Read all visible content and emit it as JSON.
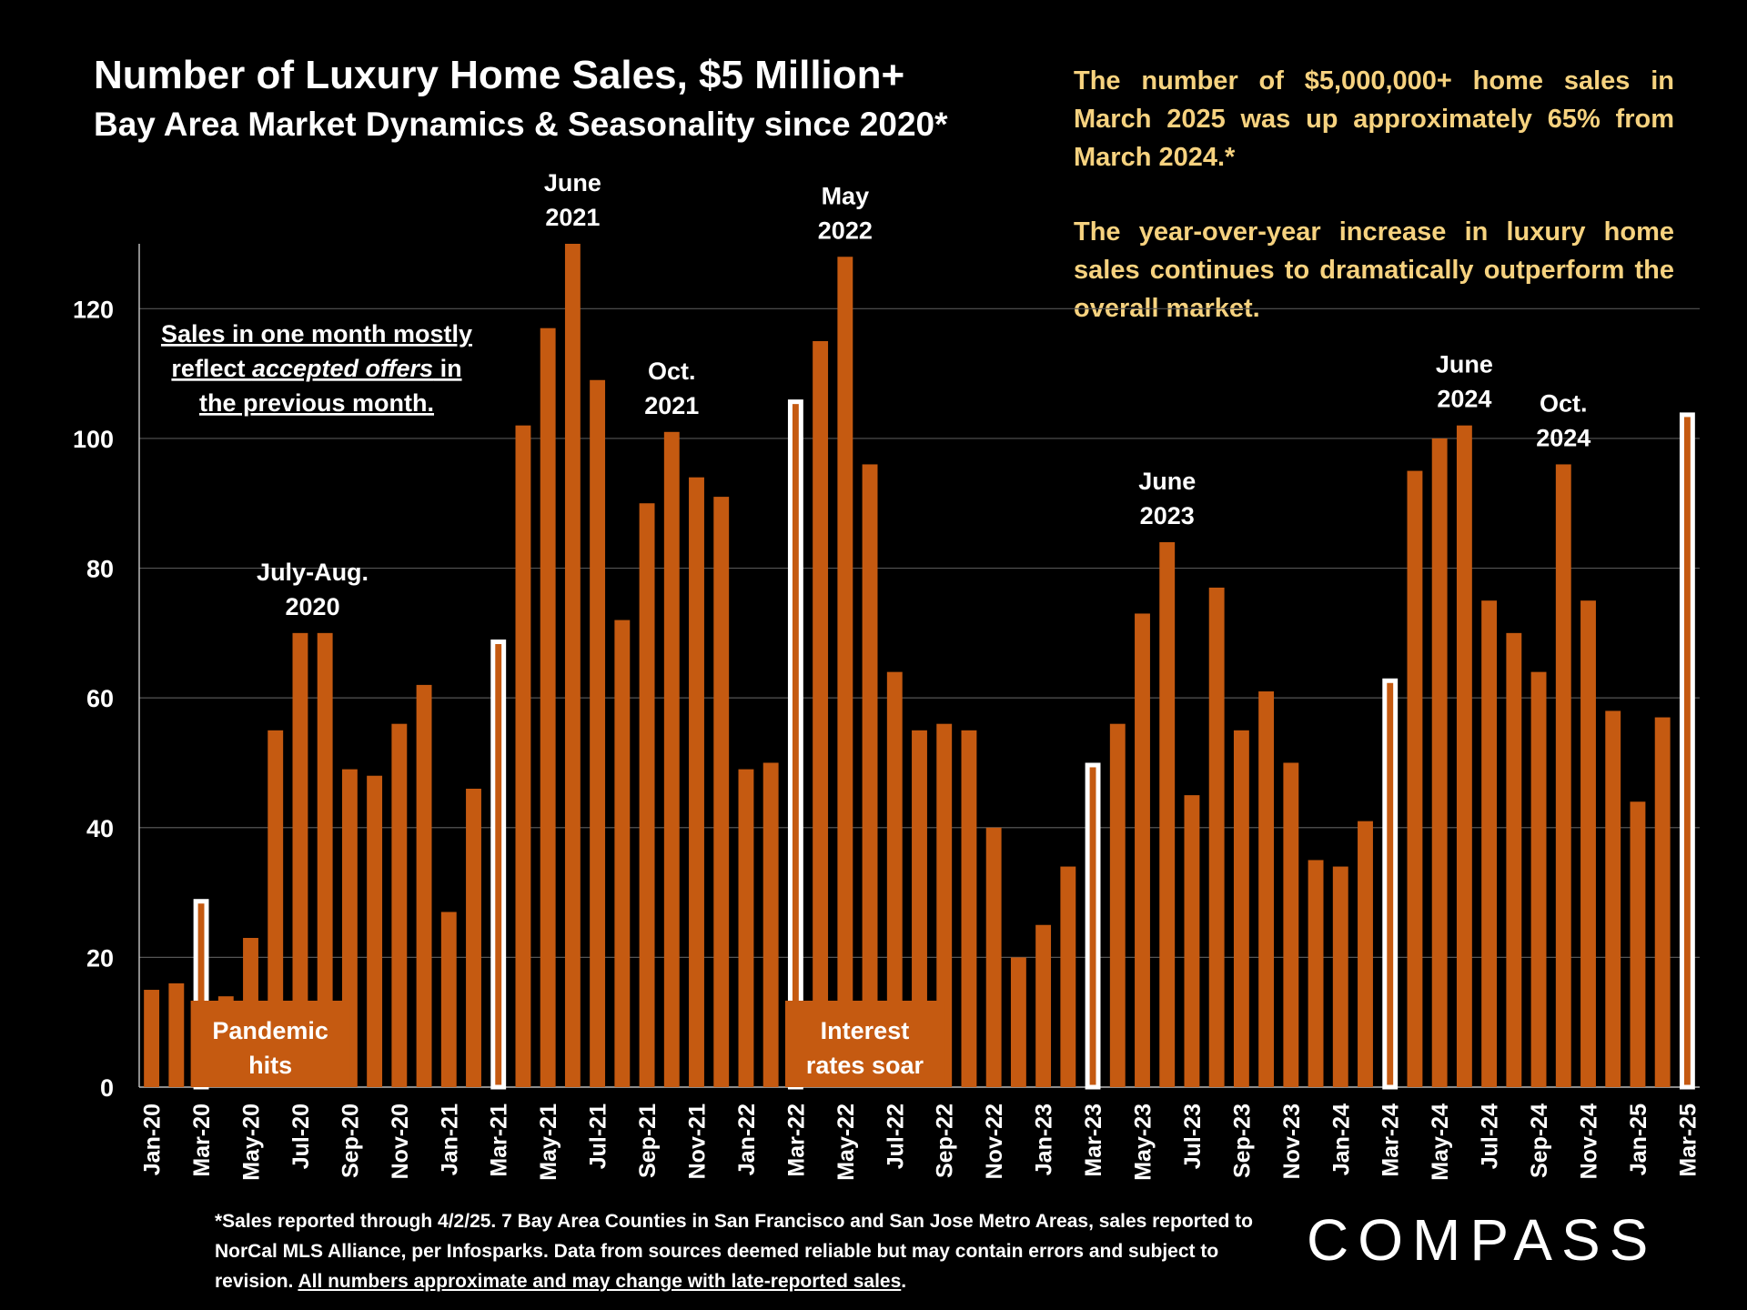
{
  "header": {
    "title": "Number of Luxury Home Sales, $5 Million+",
    "subtitle": "Bay Area Market Dynamics & Seasonality since 2020*"
  },
  "commentary": {
    "p1": "The number of $5,000,000+ home sales in March 2025 was up approximately 65% from March 2024.*",
    "p2": "The year-over-year increase in luxury home sales continues to dramatically outperform the overall market."
  },
  "footnote": {
    "main": "*Sales reported through 4/2/25. 7 Bay Area Counties in San Francisco and San Jose Metro Areas, sales reported to NorCal MLS Alliance, per Infosparks.  Data from sources deemed reliable but may contain errors and subject to revision. ",
    "underlined": "All numbers approximate and may change with late-reported sales",
    "end": "."
  },
  "logo": {
    "text": "COMPASS"
  },
  "colors": {
    "bar": "#c55a11",
    "highlight_bar": "#ffffff",
    "background": "#000000",
    "commentary": "#f6d27f"
  },
  "chart_data": {
    "type": "bar",
    "title": "Number of Luxury Home Sales, $5 Million+",
    "subtitle": "Bay Area Market Dynamics & Seasonality since 2020*",
    "ylim": [
      0,
      130
    ],
    "yticks": [
      0,
      20,
      40,
      60,
      80,
      100,
      120
    ],
    "grid": true,
    "categories": [
      "Jan-20",
      "Feb-20",
      "Mar-20",
      "Apr-20",
      "May-20",
      "Jun-20",
      "Jul-20",
      "Aug-20",
      "Sep-20",
      "Oct-20",
      "Nov-20",
      "Dec-20",
      "Jan-21",
      "Feb-21",
      "Mar-21",
      "Apr-21",
      "May-21",
      "Jun-21",
      "Jul-21",
      "Aug-21",
      "Sep-21",
      "Oct-21",
      "Nov-21",
      "Dec-21",
      "Jan-22",
      "Feb-22",
      "Mar-22",
      "Apr-22",
      "May-22",
      "Jun-22",
      "Jul-22",
      "Aug-22",
      "Sep-22",
      "Oct-22",
      "Nov-22",
      "Dec-22",
      "Jan-23",
      "Feb-23",
      "Mar-23",
      "Apr-23",
      "May-23",
      "Jun-23",
      "Jul-23",
      "Aug-23",
      "Sep-23",
      "Oct-23",
      "Nov-23",
      "Dec-23",
      "Jan-24",
      "Feb-24",
      "Mar-24",
      "Apr-24",
      "May-24",
      "Jun-24",
      "Jul-24",
      "Aug-24",
      "Sep-24",
      "Oct-24",
      "Nov-24",
      "Dec-24",
      "Jan-25",
      "Feb-25",
      "Mar-25"
    ],
    "values": [
      15,
      16,
      29,
      14,
      23,
      55,
      70,
      70,
      49,
      48,
      56,
      62,
      27,
      46,
      69,
      102,
      117,
      130,
      109,
      72,
      90,
      101,
      94,
      91,
      49,
      50,
      106,
      115,
      128,
      96,
      64,
      55,
      56,
      55,
      40,
      20,
      25,
      34,
      50,
      56,
      73,
      84,
      45,
      77,
      55,
      61,
      50,
      35,
      34,
      41,
      63,
      95,
      100,
      102,
      75,
      70,
      64,
      96,
      75,
      58,
      44,
      57,
      104
    ],
    "highlighted": [
      "Mar-20",
      "Mar-21",
      "Mar-22",
      "Mar-23",
      "Mar-24",
      "Mar-25"
    ],
    "x_tick_labels": [
      "Jan-20",
      "Mar-20",
      "May-20",
      "Jul-20",
      "Sep-20",
      "Nov-20",
      "Jan-21",
      "Mar-21",
      "May-21",
      "Jul-21",
      "Sep-21",
      "Nov-21",
      "Jan-22",
      "Mar-22",
      "May-22",
      "Jul-22",
      "Sep-22",
      "Nov-22",
      "Jan-23",
      "Mar-23",
      "May-23",
      "Jul-23",
      "Sep-23",
      "Nov-23",
      "Jan-24",
      "Mar-24",
      "May-24",
      "Jul-24",
      "Sep-24",
      "Nov-24",
      "Jan-25",
      "Mar-25"
    ],
    "annotations": [
      {
        "lines": [
          "July-Aug.",
          "2020"
        ],
        "near": "Jul-20"
      },
      {
        "lines": [
          "June",
          "2021"
        ],
        "near": "Jun-21"
      },
      {
        "lines": [
          "Oct.",
          "2021"
        ],
        "near": "Oct-21"
      },
      {
        "lines": [
          "May",
          "2022"
        ],
        "near": "May-22"
      },
      {
        "lines": [
          "June",
          "2023"
        ],
        "near": "Jun-23"
      },
      {
        "lines": [
          "June",
          "2024"
        ],
        "near": "Jun-24"
      },
      {
        "lines": [
          "Oct.",
          "2024"
        ],
        "near": "Oct-24"
      }
    ],
    "note": {
      "parts": [
        "Sales in one month mostly",
        "reflect ",
        "accepted offers",
        " in",
        "the previous month."
      ]
    },
    "event_labels": [
      {
        "lines": [
          "Pandemic",
          "hits"
        ],
        "near": "Mar-20"
      },
      {
        "lines": [
          "Interest",
          "rates soar"
        ],
        "near": "Mar-22"
      }
    ]
  }
}
